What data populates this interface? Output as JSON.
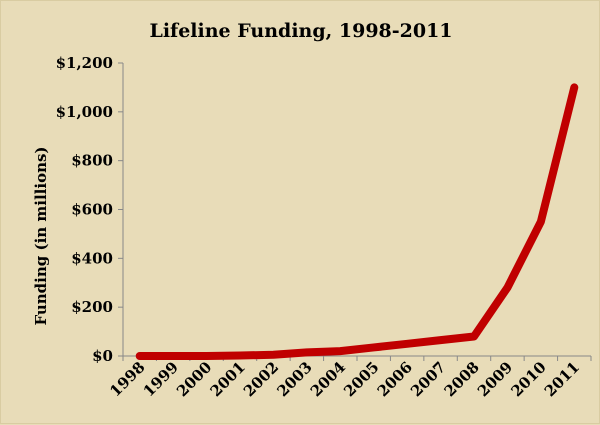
{
  "chart_data": {
    "type": "line",
    "title": "Lifeline Funding, 1998-2011",
    "xlabel": "",
    "ylabel": "Funding (in millions)",
    "categories": [
      "1998",
      "1999",
      "2000",
      "2001",
      "2002",
      "2003",
      "2004",
      "2005",
      "2006",
      "2007",
      "2008",
      "2009",
      "2010",
      "2011"
    ],
    "series": [
      {
        "name": "Lifeline Funding",
        "color": "#c00000",
        "values": [
          0,
          0,
          0,
          2,
          5,
          15,
          20,
          35,
          50,
          65,
          80,
          280,
          550,
          1100
        ]
      }
    ],
    "ylim": [
      0,
      1200
    ],
    "yticks": [
      0,
      200,
      400,
      600,
      800,
      1000,
      1200
    ],
    "ytick_labels": [
      "$0",
      "$200",
      "$400",
      "$600",
      "$800",
      "$1,000",
      "$1,200"
    ],
    "grid": false
  }
}
